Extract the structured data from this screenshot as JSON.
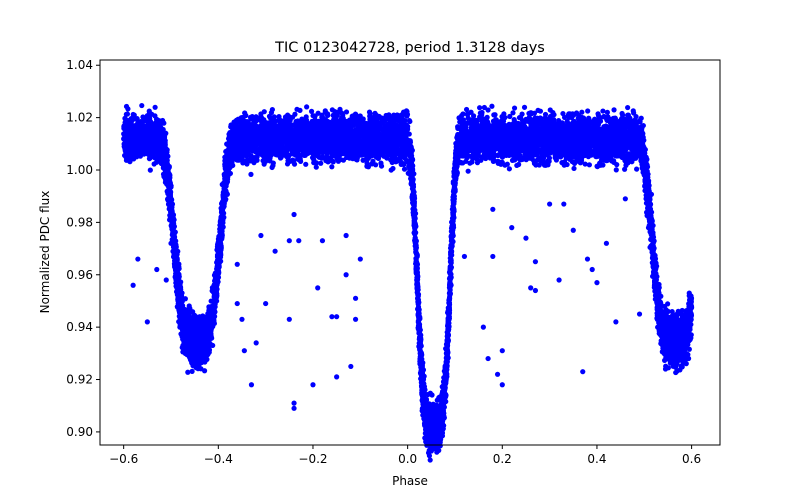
{
  "chart_data": {
    "type": "scatter",
    "title": "TIC 0123042728, period 1.3128 days",
    "xlabel": "Phase",
    "ylabel": "Normalized PDC flux",
    "xlim": [
      -0.65,
      0.66
    ],
    "ylim": [
      0.895,
      1.042
    ],
    "xticks": [
      -0.6,
      -0.4,
      -0.2,
      0.0,
      0.2,
      0.4,
      0.6
    ],
    "xtick_labels": [
      "−0.6",
      "−0.4",
      "−0.2",
      "0.0",
      "0.2",
      "0.4",
      "0.6"
    ],
    "yticks": [
      0.9,
      0.92,
      0.94,
      0.96,
      0.98,
      1.0,
      1.02,
      1.04
    ],
    "ytick_labels": [
      "0.90",
      "0.92",
      "0.94",
      "0.96",
      "0.98",
      "1.00",
      "1.02",
      "1.04"
    ],
    "grid": false,
    "marker_color": "#0000ff",
    "phase_range": [
      -0.6,
      0.6
    ],
    "baseline_flux": 1.012,
    "scatter_halfwidth": 0.011,
    "dips": [
      {
        "phase": 0.055,
        "min_flux": 0.902,
        "description": "primary eclipse"
      },
      {
        "phase": -0.445,
        "min_flux": 0.935,
        "description": "secondary eclipse"
      },
      {
        "phase": 0.565,
        "min_flux": 0.935,
        "description": "secondary eclipse"
      }
    ],
    "outliers": [
      [
        -0.57,
        0.966
      ],
      [
        -0.58,
        0.956
      ],
      [
        -0.55,
        0.942
      ],
      [
        -0.51,
        0.958
      ],
      [
        -0.5,
        0.972
      ],
      [
        -0.36,
        0.964
      ],
      [
        -0.36,
        0.949
      ],
      [
        -0.345,
        0.931
      ],
      [
        -0.35,
        0.943
      ],
      [
        -0.33,
        0.918
      ],
      [
        -0.32,
        0.934
      ],
      [
        -0.31,
        0.975
      ],
      [
        -0.3,
        0.949
      ],
      [
        -0.28,
        0.969
      ],
      [
        -0.25,
        0.943
      ],
      [
        -0.25,
        0.973
      ],
      [
        -0.24,
        0.983
      ],
      [
        -0.23,
        0.973
      ],
      [
        -0.24,
        0.911
      ],
      [
        -0.24,
        0.909
      ],
      [
        -0.2,
        0.918
      ],
      [
        -0.19,
        0.955
      ],
      [
        -0.18,
        0.973
      ],
      [
        -0.16,
        0.944
      ],
      [
        -0.15,
        0.944
      ],
      [
        -0.15,
        0.921
      ],
      [
        -0.13,
        0.96
      ],
      [
        -0.13,
        0.975
      ],
      [
        -0.12,
        0.925
      ],
      [
        -0.11,
        0.943
      ],
      [
        -0.11,
        0.951
      ],
      [
        -0.1,
        0.966
      ],
      [
        0.12,
        0.967
      ],
      [
        0.16,
        0.94
      ],
      [
        0.17,
        0.928
      ],
      [
        0.18,
        0.967
      ],
      [
        0.18,
        0.985
      ],
      [
        0.19,
        0.922
      ],
      [
        0.2,
        0.931
      ],
      [
        0.2,
        0.918
      ],
      [
        0.22,
        0.978
      ],
      [
        0.25,
        0.974
      ],
      [
        0.26,
        0.955
      ],
      [
        0.27,
        0.965
      ],
      [
        0.27,
        0.954
      ],
      [
        0.3,
        0.987
      ],
      [
        0.32,
        0.958
      ],
      [
        0.33,
        0.987
      ],
      [
        0.35,
        0.977
      ],
      [
        0.37,
        0.923
      ],
      [
        0.38,
        0.966
      ],
      [
        0.39,
        0.962
      ],
      [
        0.4,
        0.957
      ],
      [
        0.42,
        0.972
      ],
      [
        0.44,
        0.942
      ],
      [
        0.46,
        0.989
      ],
      [
        0.49,
        0.945
      ],
      [
        -0.53,
        0.962
      ]
    ]
  }
}
